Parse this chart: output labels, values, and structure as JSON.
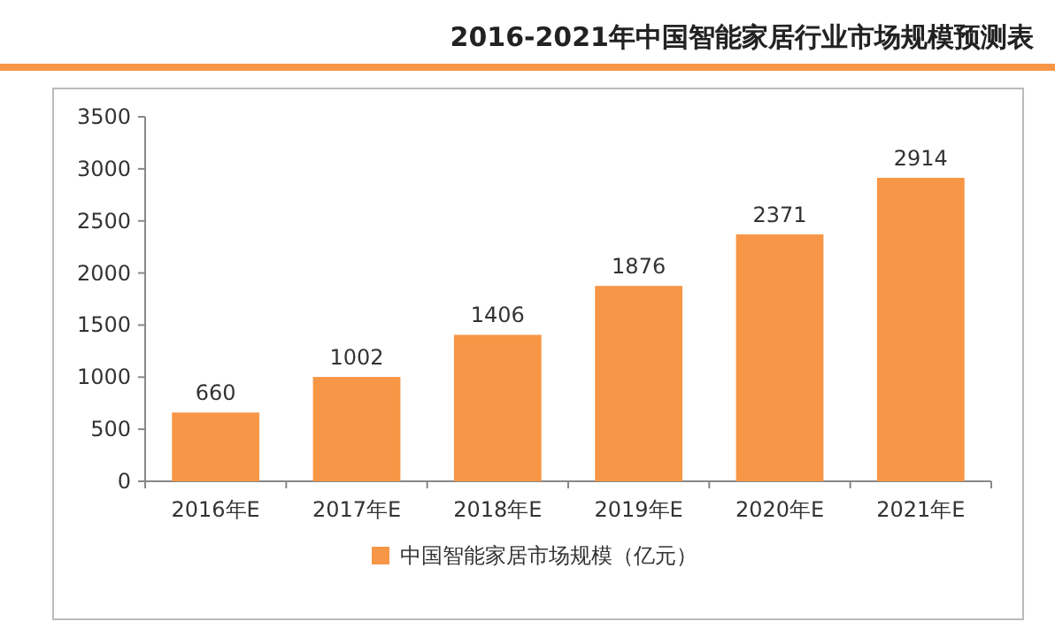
{
  "chart_data": {
    "type": "bar",
    "title": "2016-2021年中国智能家居行业市场规模预测表",
    "categories": [
      "2016年E",
      "2017年E",
      "2018年E",
      "2019年E",
      "2020年E",
      "2021年E"
    ],
    "series": [
      {
        "name": "中国智能家居市场规模（亿元）",
        "color": "#f79646",
        "values": [
          660,
          1002,
          1406,
          1876,
          2371,
          2914
        ]
      }
    ],
    "ylim": [
      0,
      3500
    ],
    "yticks": [
      0,
      500,
      1000,
      1500,
      2000,
      2500,
      3000,
      3500
    ],
    "data_labels": true,
    "legend": "bottom",
    "grid": false
  }
}
